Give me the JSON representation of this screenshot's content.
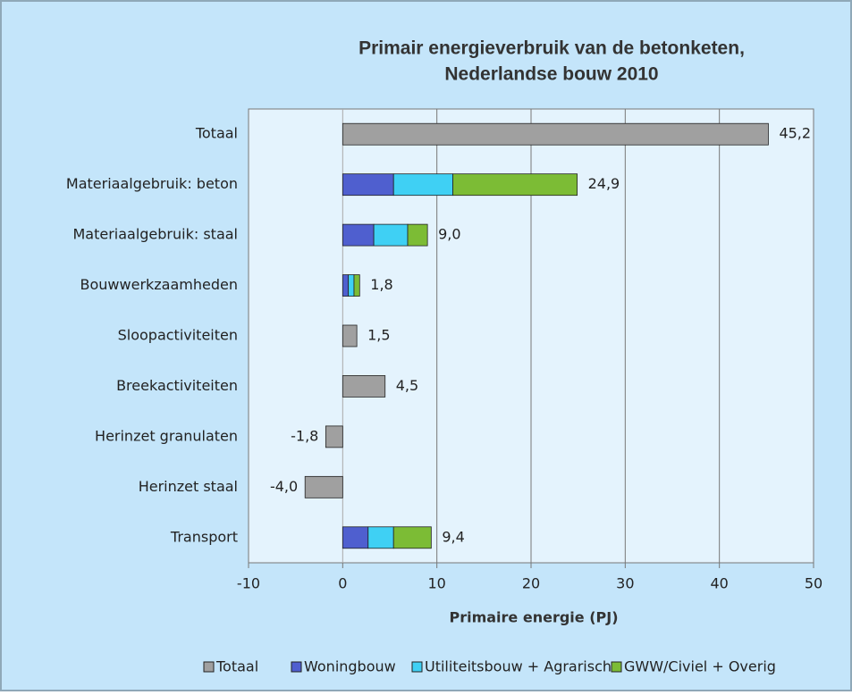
{
  "chart_data": {
    "type": "stacked-barh",
    "title": "Primair energieverbruik  van de betonketen,",
    "subtitle": "Nederlandse bouw 2010",
    "x_label": "Primaire energie (PJ)",
    "categories": [
      "Totaal",
      "Materiaalgebruik: beton",
      "Materiaalgebruik: staal",
      "Bouwwerkzaamheden",
      "Sloopactiviteiten",
      "Breekactiviteiten",
      "Herinzet granulaten",
      "Herinzet staal",
      "Transport"
    ],
    "series": [
      {
        "name": "Totaal",
        "color": "#a0a0a0",
        "values": [
          45.2,
          null,
          null,
          null,
          1.5,
          4.5,
          -1.8,
          -4.0,
          null
        ]
      },
      {
        "name": "Woningbouw",
        "color": "#4f5fcf",
        "values": [
          null,
          5.4,
          3.3,
          0.6,
          null,
          null,
          null,
          null,
          2.7
        ]
      },
      {
        "name": "Utiliteitsbouw + Agrarisch",
        "color": "#3fd0f4",
        "values": [
          null,
          6.3,
          3.6,
          0.6,
          null,
          null,
          null,
          null,
          2.7
        ]
      },
      {
        "name": "GWW/Civiel + Overig",
        "color": "#7cbc35",
        "values": [
          null,
          13.2,
          2.1,
          0.6,
          null,
          null,
          null,
          null,
          4.0
        ]
      }
    ],
    "totals": [
      45.2,
      24.9,
      9.0,
      1.8,
      1.5,
      4.5,
      -1.8,
      -4.0,
      9.4
    ],
    "total_labels": [
      "45,2",
      "24,9",
      "9,0",
      "1,8",
      "1,5",
      "4,5",
      "-1,8",
      "-4,0",
      "9,4"
    ],
    "xlim": [
      -10,
      50
    ],
    "xticks": [
      -10,
      0,
      10,
      20,
      30,
      40,
      50
    ],
    "grid": true,
    "legend": "bottom"
  }
}
